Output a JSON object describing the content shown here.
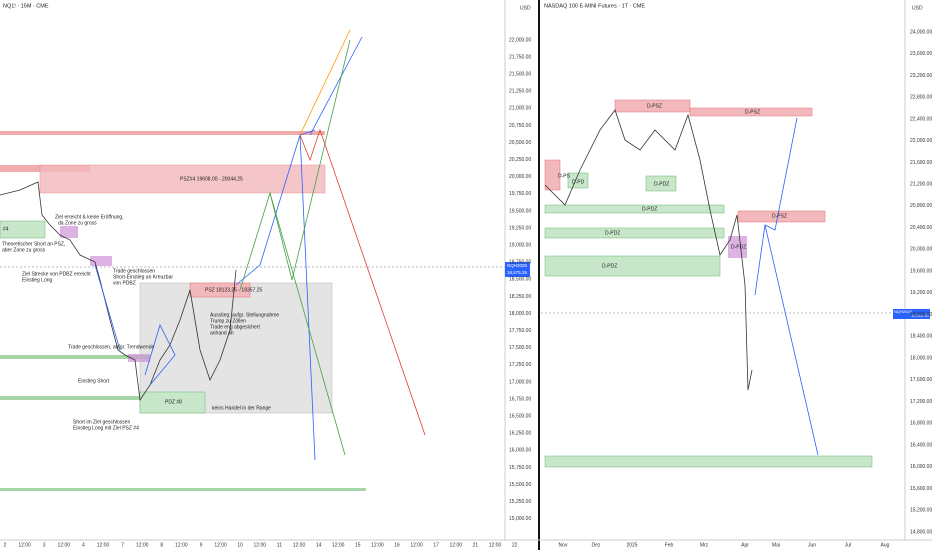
{
  "left": {
    "title": "NQ1! · 15M · CME",
    "currency": "USD",
    "price_labels": [
      "22,000.00",
      "21,750.00",
      "21,500.00",
      "21,250.00",
      "21,000.00",
      "20,750.00",
      "20,500.00",
      "20,250.00",
      "20,000.00",
      "19,750.00",
      "19,500.00",
      "19,250.00",
      "19,000.00",
      "18,750.00",
      "18,500.00",
      "18,250.00",
      "18,000.00",
      "17,750.00",
      "17,500.00",
      "17,250.00",
      "17,000.00",
      "16,750.00",
      "16,500.00",
      "16,250.00",
      "16,000.00",
      "15,750.00",
      "15,500.00",
      "15,250.00",
      "15,000.00"
    ],
    "time_labels": [
      "2",
      "12:00",
      "3",
      "12:00",
      "4",
      "12:00",
      "7",
      "12:00",
      "8",
      "12:00",
      "9",
      "12:00",
      "10",
      "12:00",
      "11",
      "12:00",
      "14",
      "12:00",
      "15",
      "12:00",
      "16",
      "12:00",
      "17",
      "12:00",
      "21",
      "12:00",
      "22"
    ],
    "current_symbol": "NQH2025",
    "current_price": "18,575.25",
    "annotations": {
      "psz4": "PSZ#4 19608.00 - 20044.25",
      "psz": "PSZ 18123.25 - 18357.25",
      "pdz8": "PDZ #8",
      "no_trade": "keins Handel in der Range",
      "zone4": "#4",
      "target_reached": [
        "Ziel erreicht & keine Eröffnung,",
        "da Zone zu gross"
      ],
      "theoretical_short": [
        "Theoretischer Short an PSZ,",
        "aber Zone zu gross"
      ],
      "target_long": [
        "Ziel Strecke von PDBZ erreicht",
        "Einstieg Long"
      ],
      "trade_closed_short": [
        "Trade geschlossen",
        "Short-Einstieg an Kreuzbar",
        "von PDBZ"
      ],
      "trend_change": "Trade geschlossen, aufgr. Trendwende",
      "entry_short": "Einstieg Short",
      "short_target": [
        "Short im Ziel geschlossen",
        "Einstieg Long mit Ziel PSZ #4"
      ],
      "exit": [
        "Ausstieg: aufgr. Stellungnahme",
        "Trump zu Zöllen",
        "Trade eng abgesichert",
        "anhand 4h"
      ]
    }
  },
  "right": {
    "title": "NASDAQ 100 E-MINI Futures · 1T · CME",
    "currency": "USD",
    "price_labels": [
      "24,000.00",
      "23,600.00",
      "23,200.00",
      "22,800.00",
      "22,400.00",
      "22,000.00",
      "21,600.00",
      "21,200.00",
      "20,800.00",
      "20,400.00",
      "20,000.00",
      "19,600.00",
      "19,200.00",
      "18,800.00",
      "18,400.00",
      "18,000.00",
      "17,600.00",
      "17,200.00",
      "16,800.00",
      "16,400.00",
      "16,000.00",
      "15,600.00",
      "15,200.00",
      "14,800.00"
    ],
    "time_labels": [
      "Nov",
      "Dez",
      "2025",
      "Feb",
      "Mrz",
      "Apr",
      "Mai",
      "Jun",
      "Jul",
      "Aug"
    ],
    "current_symbol": "NQH2025",
    "current_price": "18,960.50",
    "annotations": {
      "dps": "D-PS",
      "dpd": "D-PD",
      "dpsz1": "D-PSZ",
      "dpsz2": "D-PSZ",
      "dpsz3": "D-PSZ",
      "dpdz1": "D-PDZ",
      "dpdz2": "D-PDZ",
      "dpdz3": "D-PDZ",
      "dpdz4": "D-PDZ",
      "dpdz5": "D-PDZ"
    }
  }
}
